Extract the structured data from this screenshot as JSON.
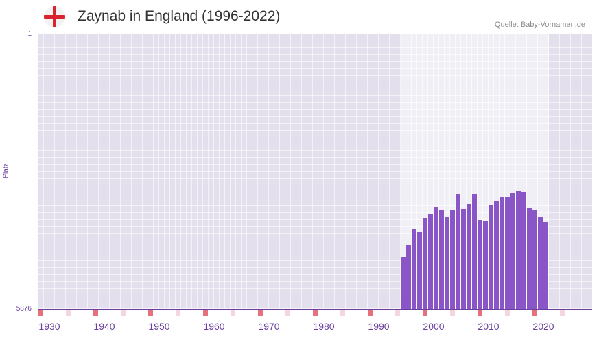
{
  "header": {
    "title": "Zaynab in England (1996-2022)",
    "source": "Quelle: Baby-Vornamen.de",
    "flag_icon": "england-flag-icon"
  },
  "chart_data": {
    "type": "bar",
    "title": "Zaynab in England (1996-2022)",
    "ylabel": "Platz",
    "xlabel": "",
    "y_scale": "log",
    "y_reversed": true,
    "ylim": [
      1,
      5876
    ],
    "y_ticks": [
      "1",
      "5876"
    ],
    "xlim": [
      1930,
      2030
    ],
    "x_ticks": [
      "1930",
      "1940",
      "1950",
      "1960",
      "1970",
      "1980",
      "1990",
      "2000",
      "2010",
      "2020"
    ],
    "highlight_range": [
      1996,
      2022
    ],
    "x": [
      1996,
      1997,
      1998,
      1999,
      2000,
      2001,
      2002,
      2003,
      2004,
      2005,
      2006,
      2007,
      2008,
      2009,
      2010,
      2011,
      2012,
      2013,
      2014,
      2015,
      2016,
      2017,
      2018,
      2019,
      2020,
      2021,
      2022
    ],
    "values": [
      1130,
      781,
      474,
      517,
      328,
      288,
      237,
      258,
      321,
      253,
      157,
      248,
      213,
      154,
      350,
      366,
      217,
      191,
      171,
      171,
      150,
      141,
      144,
      242,
      253,
      321,
      374
    ],
    "colors": {
      "bar": "#8a55c6",
      "decade_mark": "#e8707a",
      "half_decade_mark": "#f4d6dc",
      "axis": "#6b3fa0"
    }
  }
}
